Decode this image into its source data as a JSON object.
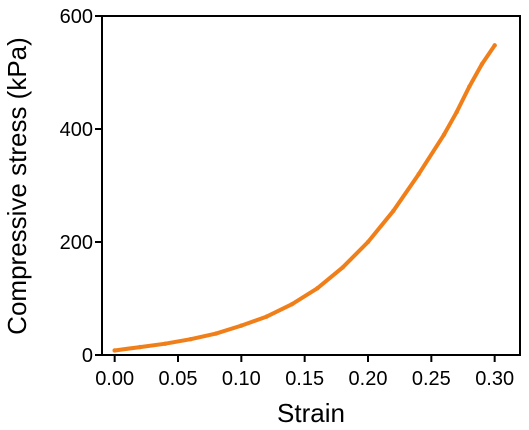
{
  "chart_data": {
    "type": "line",
    "xlabel": "Strain",
    "ylabel": "Compressive stress (kPa)",
    "xlim": [
      -0.01,
      0.32
    ],
    "ylim": [
      0,
      600
    ],
    "xticks": [
      "0.00",
      "0.05",
      "0.10",
      "0.15",
      "0.20",
      "0.25",
      "0.30"
    ],
    "yticks": [
      "0",
      "200",
      "400",
      "600"
    ],
    "grid": false,
    "colors": {
      "series": "#f07f1a",
      "axis": "#000000"
    },
    "series": [
      {
        "x": [
          0.0,
          0.02,
          0.04,
          0.06,
          0.08,
          0.1,
          0.12,
          0.14,
          0.16,
          0.18,
          0.2,
          0.22,
          0.24,
          0.26,
          0.27,
          0.28,
          0.29,
          0.3
        ],
        "y": [
          8,
          14,
          20,
          28,
          38,
          52,
          68,
          90,
          118,
          155,
          200,
          255,
          320,
          390,
          430,
          475,
          515,
          548
        ]
      }
    ]
  }
}
